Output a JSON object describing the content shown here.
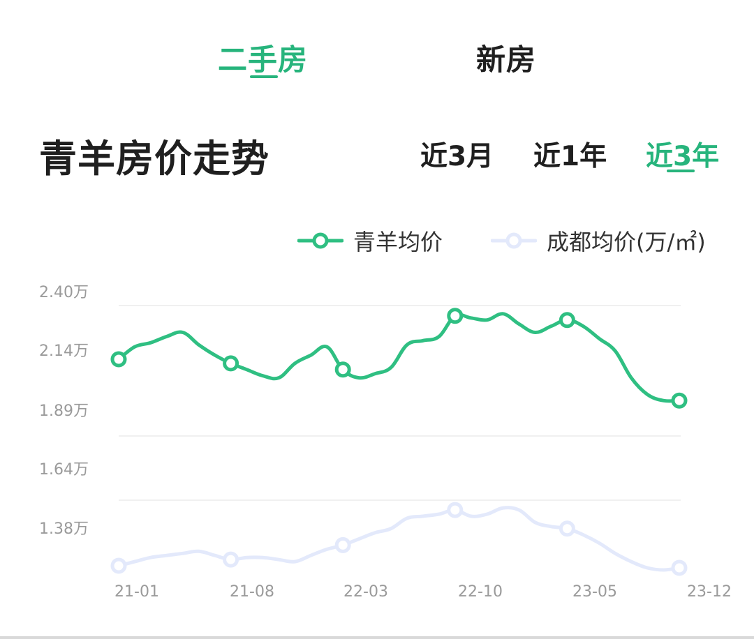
{
  "top_tabs": [
    {
      "label": "二手房",
      "active": true
    },
    {
      "label": "新房",
      "active": false
    }
  ],
  "section_title": "青羊房价走势",
  "range_tabs": [
    {
      "label": "近3月",
      "active": false
    },
    {
      "label": "近1年",
      "active": false
    },
    {
      "label": "近3年",
      "active": true
    }
  ],
  "colors": {
    "accent": "#27b47c",
    "series_primary": "#2fbf82",
    "series_secondary": "#e3e9fb",
    "text": "#1f1f1f",
    "axis_text": "#9a9a9a",
    "grid": "#f0f0f0"
  },
  "chart_data": {
    "type": "line",
    "ylabel_unit": "万/㎡",
    "y_ticks": [
      "2.40万",
      "2.14万",
      "1.89万",
      "1.64万",
      "1.38万"
    ],
    "ylim": [
      1.13,
      2.4
    ],
    "x_tick_labels": [
      "21-01",
      "21-08",
      "22-03",
      "22-10",
      "23-05",
      "23-12"
    ],
    "x_index_range": [
      0,
      35
    ],
    "series": [
      {
        "name": "青羊均价",
        "x": [
          0,
          1,
          2,
          3,
          4,
          5,
          6,
          7,
          8,
          9,
          10,
          11,
          12,
          13,
          14,
          15,
          16,
          17,
          18,
          19,
          20,
          21,
          22,
          23,
          24,
          25,
          26,
          27,
          28,
          29,
          30,
          31,
          32,
          33,
          34,
          35
        ],
        "values": [
          2.14,
          2.2,
          2.22,
          2.25,
          2.27,
          2.21,
          2.16,
          2.12,
          2.09,
          2.06,
          2.05,
          2.12,
          2.16,
          2.2,
          2.09,
          2.05,
          2.07,
          2.1,
          2.21,
          2.23,
          2.25,
          2.35,
          2.34,
          2.33,
          2.36,
          2.31,
          2.27,
          2.3,
          2.33,
          2.3,
          2.24,
          2.18,
          2.05,
          1.97,
          1.94,
          1.94
        ],
        "markers_at": [
          0,
          7,
          14,
          21,
          28,
          35
        ]
      },
      {
        "name": "成都均价",
        "x": [
          0,
          1,
          2,
          3,
          4,
          5,
          6,
          7,
          8,
          9,
          10,
          11,
          12,
          13,
          14,
          15,
          16,
          17,
          18,
          19,
          20,
          21,
          22,
          23,
          24,
          25,
          26,
          27,
          28,
          29,
          30,
          31,
          32,
          33,
          34,
          35
        ],
        "values": [
          1.14,
          1.16,
          1.18,
          1.19,
          1.2,
          1.21,
          1.19,
          1.17,
          1.18,
          1.18,
          1.17,
          1.16,
          1.19,
          1.22,
          1.24,
          1.27,
          1.3,
          1.32,
          1.37,
          1.38,
          1.39,
          1.41,
          1.38,
          1.39,
          1.42,
          1.41,
          1.35,
          1.33,
          1.32,
          1.29,
          1.25,
          1.2,
          1.16,
          1.13,
          1.12,
          1.13
        ],
        "markers_at": [
          0,
          7,
          14,
          21,
          28,
          35
        ]
      }
    ],
    "legend": [
      {
        "label": "青羊均价",
        "series": 0
      },
      {
        "label": "成都均价(万/㎡)",
        "series": 1
      }
    ],
    "grid": true,
    "legend_position": "top-right"
  }
}
